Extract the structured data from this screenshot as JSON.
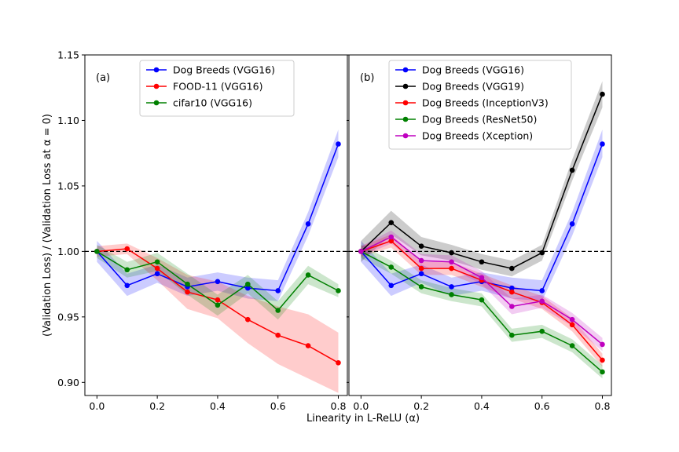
{
  "chart_data": {
    "type": "line",
    "xlabel": "Linearity in L-ReLU (α)",
    "ylabel": "(Validation Loss) / (Validation Loss at α = 0)",
    "xlim": [
      -0.04,
      0.83
    ],
    "ylim": [
      0.89,
      1.15
    ],
    "yticks": [
      "0.90",
      "0.95",
      "1.00",
      "1.05",
      "1.10",
      "1.15"
    ],
    "xticks": [
      "0.0",
      "0.2",
      "0.4",
      "0.6",
      "0.8"
    ],
    "reference_line": 1.0,
    "grid": false,
    "panels": [
      {
        "label": "(a)",
        "legend_position": "top-center",
        "series": [
          {
            "name": "Dog Breeds (VGG16)",
            "color": "#0000ff",
            "x": [
              0.0,
              0.1,
              0.2,
              0.3,
              0.4,
              0.5,
              0.6,
              0.7,
              0.8
            ],
            "y": [
              1.0,
              0.974,
              0.983,
              0.973,
              0.977,
              0.972,
              0.97,
              1.021,
              1.082
            ],
            "lower": [
              0.992,
              0.966,
              0.976,
              0.966,
              0.97,
              0.964,
              0.962,
              1.012,
              1.072
            ],
            "upper": [
              1.008,
              0.983,
              0.99,
              0.98,
              0.984,
              0.98,
              0.978,
              1.03,
              1.093
            ]
          },
          {
            "name": "FOOD-11 (VGG16)",
            "color": "#ff0000",
            "x": [
              0.0,
              0.1,
              0.2,
              0.3,
              0.4,
              0.5,
              0.6,
              0.7,
              0.8
            ],
            "y": [
              1.0,
              1.002,
              0.987,
              0.969,
              0.963,
              0.948,
              0.936,
              0.928,
              0.915
            ],
            "lower": [
              0.996,
              0.998,
              0.978,
              0.956,
              0.949,
              0.93,
              0.914,
              0.903,
              0.892
            ],
            "upper": [
              1.004,
              1.006,
              0.995,
              0.982,
              0.977,
              0.966,
              0.958,
              0.952,
              0.938
            ]
          },
          {
            "name": "cifar10 (VGG16)",
            "color": "#008000",
            "x": [
              0.0,
              0.1,
              0.2,
              0.3,
              0.4,
              0.5,
              0.6,
              0.7,
              0.8
            ],
            "y": [
              1.0,
              0.986,
              0.992,
              0.975,
              0.959,
              0.975,
              0.955,
              0.982,
              0.97
            ],
            "lower": [
              0.995,
              0.98,
              0.985,
              0.967,
              0.951,
              0.968,
              0.948,
              0.975,
              0.965
            ],
            "upper": [
              1.005,
              0.992,
              0.999,
              0.983,
              0.967,
              0.982,
              0.962,
              0.989,
              0.975
            ]
          }
        ]
      },
      {
        "label": "(b)",
        "legend_position": "top-center",
        "series": [
          {
            "name": "Dog Breeds (VGG16)",
            "color": "#0000ff",
            "x": [
              0.0,
              0.1,
              0.2,
              0.3,
              0.4,
              0.5,
              0.6,
              0.7,
              0.8
            ],
            "y": [
              1.0,
              0.974,
              0.983,
              0.973,
              0.977,
              0.972,
              0.97,
              1.021,
              1.082
            ],
            "lower": [
              0.992,
              0.966,
              0.976,
              0.966,
              0.97,
              0.964,
              0.962,
              1.012,
              1.072
            ],
            "upper": [
              1.008,
              0.983,
              0.99,
              0.98,
              0.984,
              0.98,
              0.978,
              1.03,
              1.093
            ]
          },
          {
            "name": "Dog Breeds (VGG19)",
            "color": "#000000",
            "x": [
              0.0,
              0.1,
              0.2,
              0.3,
              0.4,
              0.5,
              0.6,
              0.7,
              0.8
            ],
            "y": [
              1.0,
              1.022,
              1.004,
              0.999,
              0.992,
              0.987,
              0.999,
              1.062,
              1.12
            ],
            "lower": [
              0.992,
              1.013,
              0.997,
              0.993,
              0.986,
              0.981,
              0.993,
              1.054,
              1.11
            ],
            "upper": [
              1.008,
              1.031,
              1.011,
              1.005,
              0.998,
              0.993,
              1.005,
              1.07,
              1.13
            ]
          },
          {
            "name": "Dog Breeds (InceptionV3)",
            "color": "#ff0000",
            "x": [
              0.0,
              0.1,
              0.2,
              0.3,
              0.4,
              0.5,
              0.6,
              0.7,
              0.8
            ],
            "y": [
              1.0,
              1.008,
              0.987,
              0.987,
              0.978,
              0.969,
              0.961,
              0.944,
              0.917
            ],
            "lower": [
              0.996,
              1.003,
              0.982,
              0.982,
              0.973,
              0.964,
              0.956,
              0.939,
              0.912
            ],
            "upper": [
              1.004,
              1.013,
              0.992,
              0.992,
              0.983,
              0.974,
              0.966,
              0.949,
              0.922
            ]
          },
          {
            "name": "Dog Breeds (ResNet50)",
            "color": "#008000",
            "x": [
              0.0,
              0.1,
              0.2,
              0.3,
              0.4,
              0.5,
              0.6,
              0.7,
              0.8
            ],
            "y": [
              1.0,
              0.988,
              0.973,
              0.967,
              0.963,
              0.936,
              0.939,
              0.928,
              0.908
            ],
            "lower": [
              0.995,
              0.983,
              0.968,
              0.962,
              0.958,
              0.931,
              0.934,
              0.923,
              0.903
            ],
            "upper": [
              1.005,
              0.993,
              0.978,
              0.972,
              0.968,
              0.941,
              0.944,
              0.933,
              0.913
            ]
          },
          {
            "name": "Dog Breeds (Xception)",
            "color": "#bf00bf",
            "x": [
              0.0,
              0.1,
              0.2,
              0.3,
              0.4,
              0.5,
              0.6,
              0.7,
              0.8
            ],
            "y": [
              1.0,
              1.011,
              0.993,
              0.992,
              0.98,
              0.958,
              0.962,
              0.948,
              0.929
            ],
            "lower": [
              0.996,
              1.006,
              0.988,
              0.987,
              0.975,
              0.952,
              0.957,
              0.943,
              0.924
            ],
            "upper": [
              1.004,
              1.016,
              0.998,
              0.997,
              0.985,
              0.964,
              0.967,
              0.953,
              0.934
            ]
          }
        ]
      }
    ]
  }
}
